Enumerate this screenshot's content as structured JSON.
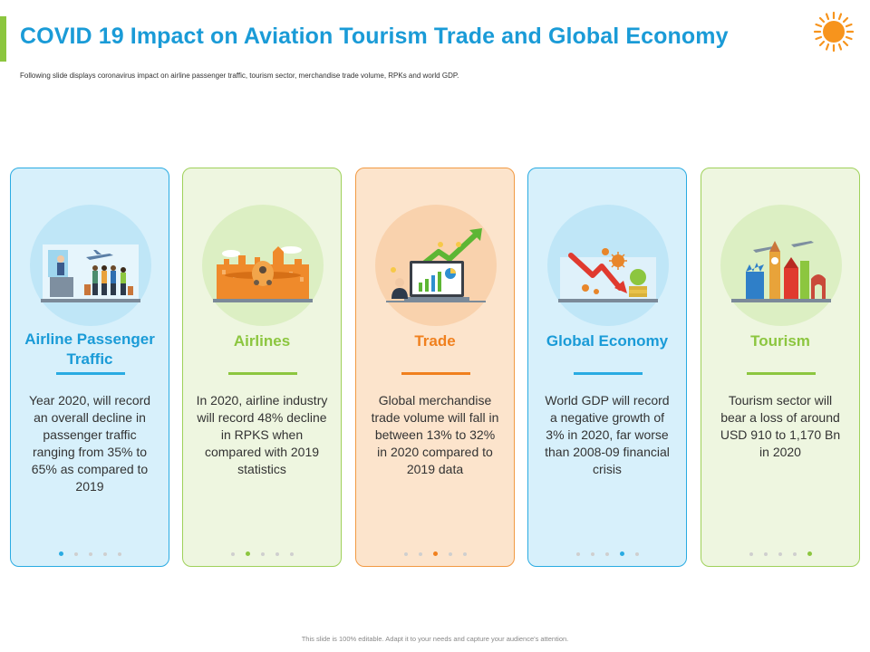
{
  "slide": {
    "title": "COVID 19 Impact on Aviation Tourism Trade and Global Economy",
    "subtitle": "Following slide displays coronavirus impact on airline passenger traffic, tourism sector, merchandise trade volume, RPKs and world GDP.",
    "footer": "This slide is 100% editable. Adapt it to your needs and capture your audience's attention."
  },
  "colors": {
    "blue": "#1a9bd7",
    "green": "#8cc63f",
    "orange": "#f0801e"
  },
  "cards": [
    {
      "icon": "airport-passengers-icon",
      "heading": "Airline Passenger Traffic",
      "body": "Year 2020, will record an overall decline in passenger traffic ranging from 35% to 65% as compared to 2019",
      "active_dot": 0
    },
    {
      "icon": "airplane-cityscape-icon",
      "heading": "Airlines",
      "body": "In 2020, airline industry will record 48% decline in RPKS when compared with 2019 statistics",
      "active_dot": 1
    },
    {
      "icon": "trade-growth-icon",
      "heading": "Trade",
      "body": "Global merchandise trade volume will fall in between 13% to 32% in 2020 compared to 2019 data",
      "active_dot": 2
    },
    {
      "icon": "economy-decline-virus-icon",
      "heading": "Global Economy",
      "body": "World GDP will record a negative growth of 3% in 2020, far worse than 2008-09 financial crisis",
      "active_dot": 3
    },
    {
      "icon": "world-landmarks-icon",
      "heading": "Tourism",
      "body": "Tourism sector will bear a loss of around USD 910 to 1,170 Bn in 2020",
      "active_dot": 4
    }
  ]
}
